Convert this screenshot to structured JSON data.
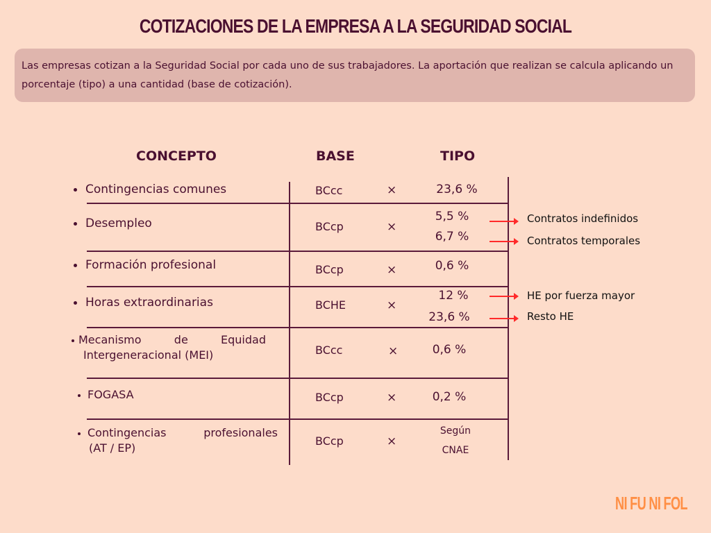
{
  "title": "COTIZACIONES DE LA EMPRESA A LA SEGURIDAD SOCIAL",
  "intro": "Las empresas cotizan a la Seguridad Social por cada uno de sus trabajadores. La aportación que realizan se calcula aplicando un porcentaje (tipo) a una cantidad (base de cotización).",
  "headers": {
    "concepto": "CONCEPTO",
    "base": "BASE",
    "tipo": "TIPO"
  },
  "times": "×",
  "rows": [
    {
      "concepto": "Contingencias comunes",
      "base": "BCcc",
      "tipo": [
        "23,6  %"
      ]
    },
    {
      "concepto": "Desempleo",
      "base": "BCcp",
      "tipo": [
        "5,5 %",
        "6,7 %"
      ],
      "notes": [
        "Contratos indefinidos",
        "Contratos temporales"
      ]
    },
    {
      "concepto": "Formación profesional",
      "base": "BCcp",
      "tipo": [
        "0,6 %"
      ]
    },
    {
      "concepto": "Horas extraordinarias",
      "base": "BCHE",
      "tipo": [
        "12 %",
        "23,6 %"
      ],
      "notes": [
        "HE por fuerza mayor",
        "Resto HE"
      ]
    },
    {
      "concepto": [
        "Mecanismo",
        "de",
        "Equidad"
      ],
      "concepto2": "Intergeneracional (MEI)",
      "base": "BCcc",
      "tipo": [
        "0,6 %"
      ]
    },
    {
      "concepto": "FOGASA",
      "base": "BCcp",
      "tipo": [
        "0,2 %"
      ]
    },
    {
      "concepto": [
        "Contingencias",
        "profesionales"
      ],
      "concepto2": "(AT / EP)",
      "base": "BCcp",
      "tipo": [
        "Según",
        "CNAE"
      ]
    }
  ],
  "logo": "NI FU NI FOL",
  "colors": {
    "background": "#fddcca",
    "text": "#4a1030",
    "box": "#dfb5ad",
    "arrow": "#ff2a2a",
    "logo": "#ff8f45"
  }
}
